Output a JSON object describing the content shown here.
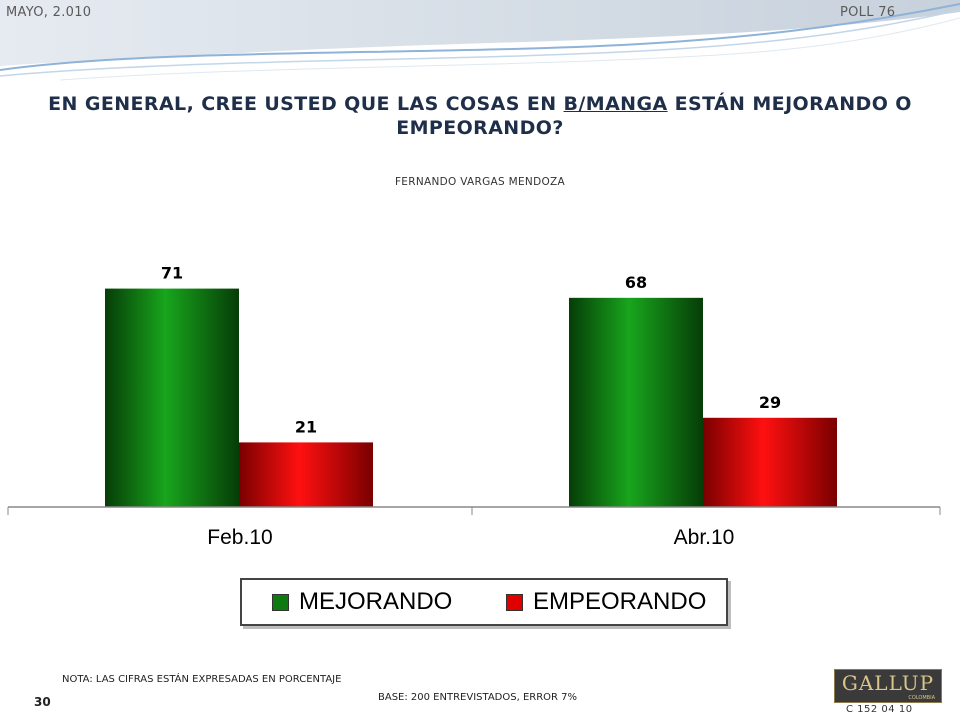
{
  "header": {
    "date": "MAYO, 2.010",
    "poll": "POLL 76"
  },
  "title": {
    "part1": "EN GENERAL, CREE USTED QUE LAS COSAS EN ",
    "underlined": "B/MANGA",
    "part2": " ESTÁN MEJORANDO O EMPEORANDO?"
  },
  "subtitle": "FERNANDO VARGAS MENDOZA",
  "colors": {
    "mejorando": "#0e7a12",
    "empeorando": "#e00000",
    "title": "#1f2f4a"
  },
  "chart_data": {
    "type": "bar",
    "categories": [
      "Feb.10",
      "Abr.10"
    ],
    "series": [
      {
        "name": "MEJORANDO",
        "values": [
          71,
          68
        ]
      },
      {
        "name": "EMPEORANDO",
        "values": [
          21,
          29
        ]
      }
    ],
    "ylim": [
      0,
      92
    ],
    "grid": false,
    "legend_position": "bottom"
  },
  "footer": {
    "note": "NOTA: LAS CIFRAS ESTÁN EXPRESADAS EN PORCENTAJE",
    "base": "BASE: 200 ENTREVISTADOS, ERROR 7%",
    "page_number": "30",
    "code": "C 152 04 10",
    "logo": "GALLUP",
    "logo_sub": "COLOMBIA"
  }
}
